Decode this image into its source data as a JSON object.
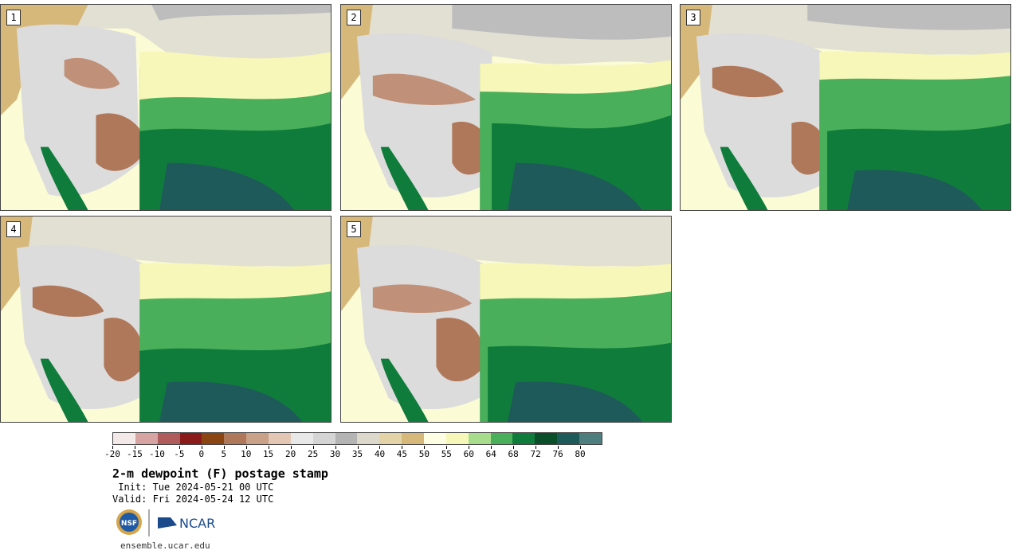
{
  "panels": [
    {
      "number": "1"
    },
    {
      "number": "2"
    },
    {
      "number": "3"
    },
    {
      "number": "4"
    },
    {
      "number": "5"
    }
  ],
  "colorbar": {
    "colors": [
      "#f3e9e9",
      "#d8a3a3",
      "#b05c5c",
      "#8b1a1a",
      "#8b4513",
      "#b0785a",
      "#c9a088",
      "#e3c7b4",
      "#e8e8e8",
      "#d4d4d4",
      "#b4b4b4",
      "#dcd9cc",
      "#e5d3a8",
      "#d6b87a",
      "#fefee5",
      "#f7f7b9",
      "#a6dc8c",
      "#49af5b",
      "#107c3c",
      "#0b4e2a",
      "#1e5a5a",
      "#4e7e7e"
    ],
    "tick_labels": [
      "-20",
      "-15",
      "-10",
      "-5",
      "0",
      "5",
      "10",
      "15",
      "20",
      "25",
      "30",
      "35",
      "40",
      "45",
      "50",
      "55",
      "60",
      "64",
      "68",
      "72",
      "76",
      "80"
    ]
  },
  "title": "2-m dewpoint (F) postage stamp",
  "init": " Init: Tue 2024-05-21 00 UTC",
  "valid": "Valid: Fri 2024-05-24 12 UTC",
  "logos": {
    "nsf": "NSF",
    "ncar": "NCAR"
  },
  "site": "ensemble.ucar.edu"
}
